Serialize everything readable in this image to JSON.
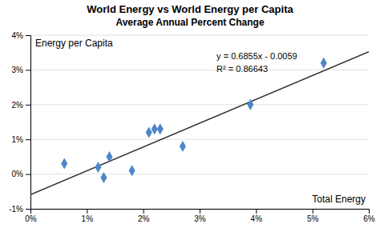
{
  "chart_data": {
    "type": "scatter",
    "title": "World Energy vs World Energy per Capita",
    "subtitle": "Average Annual Percent Change",
    "xlabel": "Total Energy",
    "ylabel": "Energy per Capita",
    "annotations": [
      "y = 0.6855x - 0.0059",
      "R² = 0.86643"
    ],
    "series": [
      {
        "type": "scatter",
        "marker": "diamond",
        "color": "#4E86C8",
        "x": [
          0.006,
          0.012,
          0.014,
          0.013,
          0.018,
          0.021,
          0.022,
          0.023,
          0.027,
          0.039,
          0.052
        ],
        "values": [
          0.003,
          0.002,
          0.005,
          -0.001,
          0.001,
          0.012,
          0.013,
          0.013,
          0.008,
          0.02,
          0.032
        ]
      },
      {
        "type": "line",
        "color": "#303030",
        "x": [
          0.0,
          0.06
        ],
        "values": [
          -0.0059,
          0.03523
        ]
      }
    ],
    "xlim": [
      0.0,
      0.06
    ],
    "ylim": [
      -0.01,
      0.04
    ],
    "xticks": [
      {
        "value": 0.0,
        "label": "0%"
      },
      {
        "value": 0.01,
        "label": "1%"
      },
      {
        "value": 0.02,
        "label": "2%"
      },
      {
        "value": 0.03,
        "label": "3%"
      },
      {
        "value": 0.04,
        "label": "4%"
      },
      {
        "value": 0.05,
        "label": "5%"
      },
      {
        "value": 0.06,
        "label": "6%"
      }
    ],
    "yticks": [
      {
        "value": -0.01,
        "label": "-1%"
      },
      {
        "value": 0.0,
        "label": "0%"
      },
      {
        "value": 0.01,
        "label": "1%"
      },
      {
        "value": 0.02,
        "label": "2%"
      },
      {
        "value": 0.03,
        "label": "3%"
      },
      {
        "value": 0.04,
        "label": "4%"
      }
    ],
    "grid": true
  }
}
